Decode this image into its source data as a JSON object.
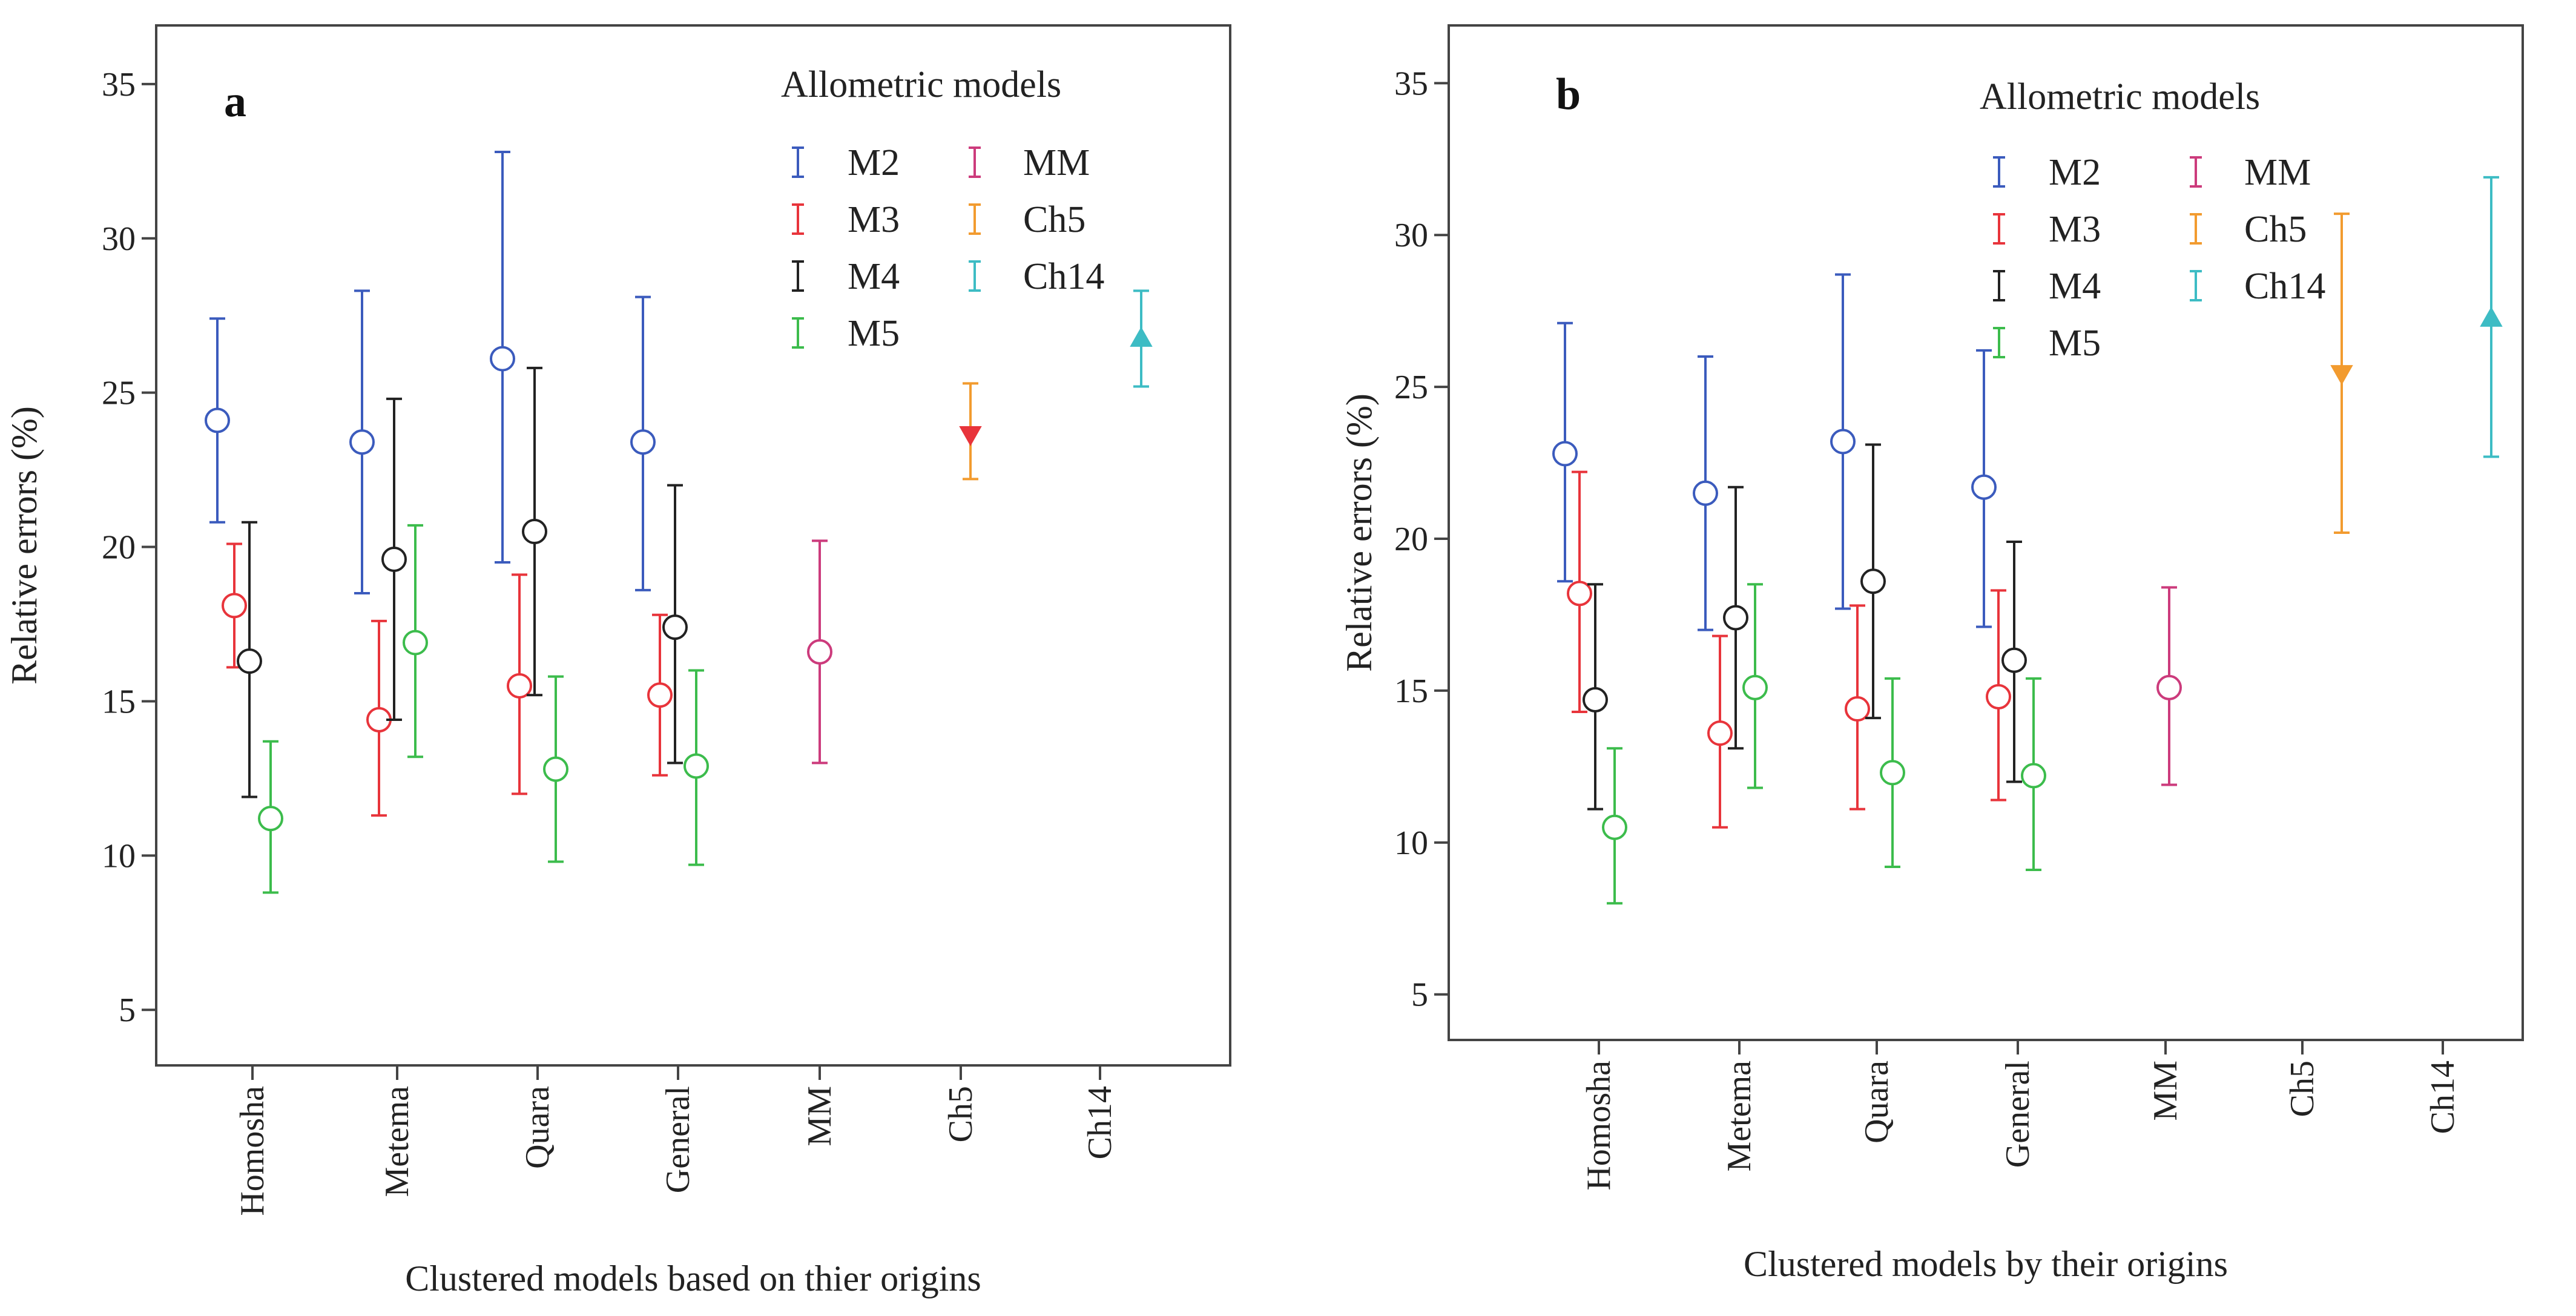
{
  "chart_data": [
    {
      "type": "errorbar",
      "panel": "a",
      "ylabel": "Relative errors (%)",
      "xlabel": "Clustered models based on thier origins",
      "ylim": [
        3.2,
        36.9
      ],
      "yticks": [
        5,
        10,
        15,
        20,
        25,
        30,
        35
      ],
      "categories": [
        "Homosha",
        "Metema",
        "Quara",
        "General",
        "MM",
        "Ch5",
        "Ch14"
      ],
      "legend_title": "Allometric models",
      "series": [
        {
          "name": "M2",
          "color": "#3b5bbd",
          "marker": "circle",
          "points": [
            {
              "category": "Homosha",
              "mean": 24.1,
              "low": 20.8,
              "high": 27.4
            },
            {
              "category": "Metema",
              "mean": 23.4,
              "low": 18.5,
              "high": 28.3
            },
            {
              "category": "Quara",
              "mean": 26.1,
              "low": 19.5,
              "high": 32.8
            },
            {
              "category": "General",
              "mean": 23.4,
              "low": 18.6,
              "high": 28.1
            }
          ]
        },
        {
          "name": "M3",
          "color": "#e8343b",
          "marker": "circle",
          "points": [
            {
              "category": "Homosha",
              "mean": 18.1,
              "low": 16.1,
              "high": 20.1
            },
            {
              "category": "Metema",
              "mean": 14.4,
              "low": 11.3,
              "high": 17.6
            },
            {
              "category": "Quara",
              "mean": 15.5,
              "low": 12.0,
              "high": 19.1
            },
            {
              "category": "General",
              "mean": 15.2,
              "low": 12.6,
              "high": 17.8
            }
          ]
        },
        {
          "name": "M4",
          "color": "#222222",
          "marker": "circle",
          "points": [
            {
              "category": "Homosha",
              "mean": 16.3,
              "low": 11.9,
              "high": 20.8
            },
            {
              "category": "Metema",
              "mean": 19.6,
              "low": 14.4,
              "high": 24.8
            },
            {
              "category": "Quara",
              "mean": 20.5,
              "low": 15.2,
              "high": 25.8
            },
            {
              "category": "General",
              "mean": 17.4,
              "low": 13.0,
              "high": 22.0
            }
          ]
        },
        {
          "name": "M5",
          "color": "#3cbc4c",
          "marker": "circle",
          "points": [
            {
              "category": "Homosha",
              "mean": 11.2,
              "low": 8.8,
              "high": 13.7
            },
            {
              "category": "Metema",
              "mean": 16.9,
              "low": 13.2,
              "high": 20.7
            },
            {
              "category": "Quara",
              "mean": 12.8,
              "low": 9.8,
              "high": 15.8
            },
            {
              "category": "General",
              "mean": 12.9,
              "low": 9.7,
              "high": 16.0
            }
          ]
        },
        {
          "name": "MM",
          "color": "#cc3b7c",
          "marker": "circle",
          "points": [
            {
              "category": "MM",
              "mean": 16.6,
              "low": 13.0,
              "high": 20.2
            }
          ]
        },
        {
          "name": "Ch5",
          "color": "#f29b2f",
          "fillcolor": "#e8343b",
          "marker": "triangle-down",
          "points": [
            {
              "category": "Ch5",
              "mean": 23.6,
              "low": 22.2,
              "high": 25.3
            }
          ]
        },
        {
          "name": "Ch14",
          "color": "#3dbcc4",
          "marker": "triangle-up",
          "points": [
            {
              "category": "Ch14",
              "mean": 26.8,
              "low": 25.2,
              "high": 28.3
            }
          ]
        }
      ]
    },
    {
      "type": "errorbar",
      "panel": "b",
      "ylabel": "Relative errors (%)",
      "xlabel": "Clustered models by their origins",
      "ylim": [
        3.5,
        36.9
      ],
      "yticks": [
        5,
        10,
        15,
        20,
        25,
        30,
        35
      ],
      "categories": [
        "Homosha",
        "Metema",
        "Quara",
        "General",
        "MM",
        "Ch5",
        "Ch14"
      ],
      "legend_title": "Allometric models",
      "series": [
        {
          "name": "M2",
          "color": "#3b5bbd",
          "marker": "circle",
          "points": [
            {
              "category": "Homosha",
              "mean": 22.8,
              "low": 18.6,
              "high": 27.1
            },
            {
              "category": "Metema",
              "mean": 21.5,
              "low": 17.0,
              "high": 26.0
            },
            {
              "category": "Quara",
              "mean": 23.2,
              "low": 17.7,
              "high": 28.7
            },
            {
              "category": "General",
              "mean": 21.7,
              "low": 17.1,
              "high": 26.2
            }
          ]
        },
        {
          "name": "M3",
          "color": "#e8343b",
          "marker": "circle",
          "points": [
            {
              "category": "Homosha",
              "mean": 18.2,
              "low": 14.3,
              "high": 22.2
            },
            {
              "category": "Metema",
              "mean": 13.6,
              "low": 10.5,
              "high": 16.8
            },
            {
              "category": "Quara",
              "mean": 14.4,
              "low": 11.1,
              "high": 17.8
            },
            {
              "category": "General",
              "mean": 14.8,
              "low": 11.4,
              "high": 18.3
            }
          ]
        },
        {
          "name": "M4",
          "color": "#222222",
          "marker": "circle",
          "points": [
            {
              "category": "Homosha",
              "mean": 14.7,
              "low": 11.1,
              "high": 18.5
            },
            {
              "category": "Metema",
              "mean": 17.4,
              "low": 13.1,
              "high": 21.7
            },
            {
              "category": "Quara",
              "mean": 18.6,
              "low": 14.1,
              "high": 23.1
            },
            {
              "category": "General",
              "mean": 16.0,
              "low": 12.0,
              "high": 19.9
            }
          ]
        },
        {
          "name": "M5",
          "color": "#3cbc4c",
          "marker": "circle",
          "points": [
            {
              "category": "Homosha",
              "mean": 10.5,
              "low": 8.0,
              "high": 13.1
            },
            {
              "category": "Metema",
              "mean": 15.1,
              "low": 11.8,
              "high": 18.5
            },
            {
              "category": "Quara",
              "mean": 12.3,
              "low": 9.2,
              "high": 15.4
            },
            {
              "category": "General",
              "mean": 12.2,
              "low": 9.1,
              "high": 15.4
            }
          ]
        },
        {
          "name": "MM",
          "color": "#cc3b7c",
          "marker": "circle",
          "points": [
            {
              "category": "MM",
              "mean": 15.1,
              "low": 11.9,
              "high": 18.4
            }
          ]
        },
        {
          "name": "Ch5",
          "color": "#f29b2f",
          "marker": "triangle-down",
          "points": [
            {
              "category": "Ch5",
              "mean": 25.4,
              "low": 20.2,
              "high": 30.7
            }
          ]
        },
        {
          "name": "Ch14",
          "color": "#3dbcc4",
          "marker": "triangle-up",
          "points": [
            {
              "category": "Ch14",
              "mean": 27.3,
              "low": 22.7,
              "high": 31.9
            }
          ]
        }
      ]
    }
  ]
}
